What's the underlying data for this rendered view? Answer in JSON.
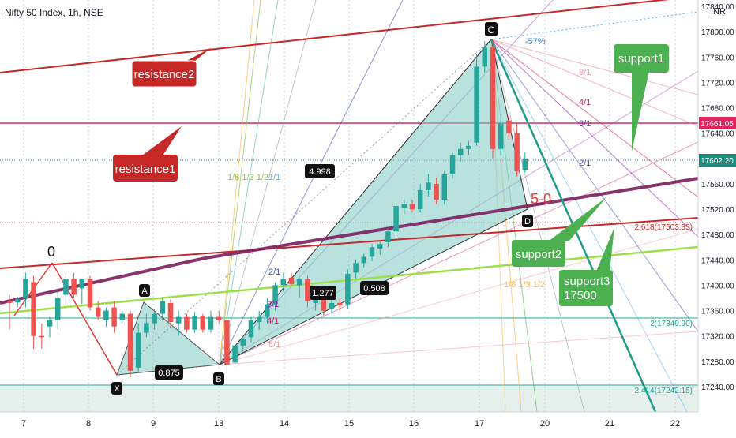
{
  "header": {
    "symbol_title": "Nifty 50 Index, 1h, NSE",
    "currency": "INR"
  },
  "colors": {
    "background": "#ffffff",
    "up_candle": "#26a69a",
    "down_candle": "#ef5350",
    "resistance": "#c62828",
    "support_callout": "#4caf50",
    "harmonic_fill": "#80cbc4",
    "trend_purple": "#7b1f5e",
    "trend_green": "#9be04a",
    "fib_teal": "#26a69a",
    "price_tag_red": "#e0245e",
    "price_tag_teal": "#1e8c7e"
  },
  "chart_data": {
    "type": "candlestick",
    "title": "Nifty 50 Index, 1h, NSE",
    "y_axis": {
      "ylim": [
        17210,
        17880
      ],
      "ticks": [
        17240,
        17280,
        17320,
        17360,
        17400,
        17440,
        17480,
        17520,
        17560,
        17600,
        17640,
        17680,
        17720,
        17760,
        17800,
        17840
      ]
    },
    "x_axis": {
      "tick_labels": [
        "7",
        "8",
        "9",
        "13",
        "14",
        "15",
        "16",
        "17",
        "20",
        "21",
        "22"
      ]
    },
    "price_tags": [
      {
        "label": "17661.05",
        "value": 17661.05,
        "style": "red"
      },
      {
        "label": "17602.20",
        "value": 17602.2,
        "style": "teal"
      }
    ],
    "candles": [
      {
        "o": 17375,
        "h": 17385,
        "l": 17330,
        "c": 17372
      },
      {
        "o": 17373,
        "h": 17382,
        "l": 17365,
        "c": 17378
      },
      {
        "o": 17380,
        "h": 17420,
        "l": 17365,
        "c": 17410
      },
      {
        "o": 17405,
        "h": 17415,
        "l": 17300,
        "c": 17320
      },
      {
        "o": 17320,
        "h": 17340,
        "l": 17300,
        "c": 17318
      },
      {
        "o": 17335,
        "h": 17350,
        "l": 17318,
        "c": 17345
      },
      {
        "o": 17345,
        "h": 17395,
        "l": 17330,
        "c": 17380
      },
      {
        "o": 17385,
        "h": 17420,
        "l": 17370,
        "c": 17410
      },
      {
        "o": 17410,
        "h": 17420,
        "l": 17380,
        "c": 17385
      },
      {
        "o": 17395,
        "h": 17410,
        "l": 17370,
        "c": 17410
      },
      {
        "o": 17410,
        "h": 17415,
        "l": 17360,
        "c": 17365
      },
      {
        "o": 17365,
        "h": 17375,
        "l": 17345,
        "c": 17350
      },
      {
        "o": 17345,
        "h": 17365,
        "l": 17335,
        "c": 17360
      },
      {
        "o": 17365,
        "h": 17375,
        "l": 17325,
        "c": 17335
      },
      {
        "o": 17345,
        "h": 17360,
        "l": 17340,
        "c": 17355
      },
      {
        "o": 17355,
        "h": 17360,
        "l": 17255,
        "c": 17265
      },
      {
        "o": 17270,
        "h": 17340,
        "l": 17262,
        "c": 17325
      },
      {
        "o": 17325,
        "h": 17355,
        "l": 17318,
        "c": 17340
      },
      {
        "o": 17340,
        "h": 17362,
        "l": 17330,
        "c": 17355
      },
      {
        "o": 17355,
        "h": 17380,
        "l": 17345,
        "c": 17375
      },
      {
        "o": 17372,
        "h": 17378,
        "l": 17335,
        "c": 17342
      },
      {
        "o": 17340,
        "h": 17360,
        "l": 17320,
        "c": 17350
      },
      {
        "o": 17350,
        "h": 17355,
        "l": 17325,
        "c": 17330
      },
      {
        "o": 17330,
        "h": 17358,
        "l": 17325,
        "c": 17352
      },
      {
        "o": 17352,
        "h": 17355,
        "l": 17325,
        "c": 17330
      },
      {
        "o": 17330,
        "h": 17360,
        "l": 17325,
        "c": 17350
      },
      {
        "o": 17350,
        "h": 17360,
        "l": 17340,
        "c": 17345
      },
      {
        "o": 17345,
        "h": 17352,
        "l": 17262,
        "c": 17275
      },
      {
        "o": 17278,
        "h": 17310,
        "l": 17272,
        "c": 17305
      },
      {
        "o": 17305,
        "h": 17320,
        "l": 17295,
        "c": 17315
      },
      {
        "o": 17318,
        "h": 17350,
        "l": 17310,
        "c": 17345
      },
      {
        "o": 17342,
        "h": 17360,
        "l": 17330,
        "c": 17350
      },
      {
        "o": 17350,
        "h": 17380,
        "l": 17340,
        "c": 17370
      },
      {
        "o": 17370,
        "h": 17405,
        "l": 17360,
        "c": 17400
      },
      {
        "o": 17400,
        "h": 17420,
        "l": 17390,
        "c": 17410
      },
      {
        "o": 17412,
        "h": 17420,
        "l": 17400,
        "c": 17402
      },
      {
        "o": 17400,
        "h": 17412,
        "l": 17380,
        "c": 17410
      },
      {
        "o": 17410,
        "h": 17415,
        "l": 17365,
        "c": 17375
      },
      {
        "o": 17372,
        "h": 17395,
        "l": 17360,
        "c": 17385
      },
      {
        "o": 17385,
        "h": 17392,
        "l": 17350,
        "c": 17360
      },
      {
        "o": 17362,
        "h": 17380,
        "l": 17355,
        "c": 17372
      },
      {
        "o": 17372,
        "h": 17380,
        "l": 17360,
        "c": 17368
      },
      {
        "o": 17370,
        "h": 17425,
        "l": 17362,
        "c": 17418
      },
      {
        "o": 17420,
        "h": 17440,
        "l": 17410,
        "c": 17435
      },
      {
        "o": 17435,
        "h": 17450,
        "l": 17428,
        "c": 17445
      },
      {
        "o": 17445,
        "h": 17465,
        "l": 17438,
        "c": 17460
      },
      {
        "o": 17458,
        "h": 17470,
        "l": 17448,
        "c": 17465
      },
      {
        "o": 17468,
        "h": 17490,
        "l": 17460,
        "c": 17485
      },
      {
        "o": 17485,
        "h": 17530,
        "l": 17478,
        "c": 17525
      },
      {
        "o": 17522,
        "h": 17535,
        "l": 17512,
        "c": 17528
      },
      {
        "o": 17528,
        "h": 17535,
        "l": 17515,
        "c": 17520
      },
      {
        "o": 17520,
        "h": 17560,
        "l": 17515,
        "c": 17550
      },
      {
        "o": 17550,
        "h": 17575,
        "l": 17540,
        "c": 17562
      },
      {
        "o": 17560,
        "h": 17570,
        "l": 17528,
        "c": 17535
      },
      {
        "o": 17535,
        "h": 17580,
        "l": 17528,
        "c": 17575
      },
      {
        "o": 17575,
        "h": 17610,
        "l": 17568,
        "c": 17605
      },
      {
        "o": 17605,
        "h": 17625,
        "l": 17595,
        "c": 17615
      },
      {
        "o": 17615,
        "h": 17628,
        "l": 17605,
        "c": 17620
      },
      {
        "o": 17625,
        "h": 17765,
        "l": 17620,
        "c": 17745
      },
      {
        "o": 17745,
        "h": 17785,
        "l": 17735,
        "c": 17775
      },
      {
        "o": 17775,
        "h": 17785,
        "l": 17600,
        "c": 17615
      },
      {
        "o": 17615,
        "h": 17665,
        "l": 17605,
        "c": 17655
      },
      {
        "o": 17660,
        "h": 17668,
        "l": 17630,
        "c": 17640
      },
      {
        "o": 17640,
        "h": 17655,
        "l": 17572,
        "c": 17580
      },
      {
        "o": 17582,
        "h": 17610,
        "l": 17578,
        "c": 17600
      }
    ]
  },
  "pattern_labels": {
    "x": "X",
    "a": "A",
    "b": "B",
    "c": "C",
    "d": "D",
    "zero": "0",
    "ratio_xb": "0.875",
    "ratio_ac": "1.277",
    "ratio_bd": "0.508",
    "ratio_xd": "4.998"
  },
  "fib_levels": {
    "l2618": "2.618(17503.35)",
    "l2": "2(17349.90)",
    "l2414": "2.414(17242.15)",
    "fan_top": "-57%"
  },
  "gann_labels": {
    "g81_top": "8/1",
    "g41_top": "4/1",
    "g31_top": "3/1",
    "g21_top": "2/1",
    "g21_bot": "2/1",
    "g31_bot": "3/1",
    "g41_bot": "4/1",
    "g81_bot": "8/1",
    "g11": "1/1",
    "g181312": "1/8 1/3 1/2",
    "g_bottom": "1/8 1/3 1/2",
    "five_zero": "5-0"
  },
  "callouts": {
    "resistance2": "resistance2",
    "resistance1": "resistance1",
    "support1": "support1",
    "support2": "support2",
    "support3_line1": "support3",
    "support3_line2": "17500"
  }
}
